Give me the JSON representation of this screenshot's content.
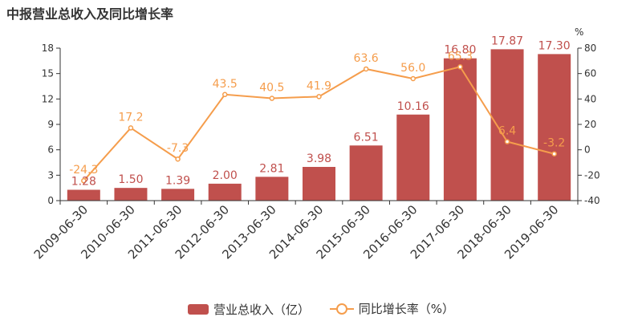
{
  "chart_data": {
    "type": "bar",
    "title": "中报营业总收入及同比增长率",
    "categories": [
      "2009-06-30",
      "2010-06-30",
      "2011-06-30",
      "2012-06-30",
      "2013-06-30",
      "2014-06-30",
      "2015-06-30",
      "2016-06-30",
      "2017-06-30",
      "2018-06-30",
      "2019-06-30"
    ],
    "series": [
      {
        "name": "营业总收入（亿）",
        "type": "bar",
        "axis": "left",
        "color": "#c0504d",
        "values": [
          1.28,
          1.5,
          1.39,
          2.0,
          2.81,
          3.98,
          6.51,
          10.16,
          16.8,
          17.87,
          17.3
        ],
        "labels": [
          "1.28",
          "1.50",
          "1.39",
          "2.00",
          "2.81",
          "3.98",
          "6.51",
          "10.16",
          "16.80",
          "17.87",
          "17.30"
        ]
      },
      {
        "name": "同比增长率（%）",
        "type": "line",
        "axis": "right",
        "color": "#f59d4c",
        "values": [
          -24.3,
          17.2,
          -7.3,
          43.5,
          40.5,
          41.9,
          63.6,
          56.0,
          65.3,
          6.4,
          -3.2
        ],
        "labels": [
          "-24.3",
          "17.2",
          "-7.3",
          "43.5",
          "40.5",
          "41.9",
          "63.6",
          "56.0",
          "65.3",
          "6.4",
          "-3.2"
        ]
      }
    ],
    "y_left": {
      "range": [
        0,
        18
      ],
      "ticks": [
        "0",
        "3",
        "6",
        "9",
        "12",
        "15",
        "18"
      ]
    },
    "y_right": {
      "range": [
        -40,
        80
      ],
      "ticks": [
        "-40",
        "-20",
        "0",
        "20",
        "40",
        "60",
        "80"
      ],
      "unit": "%"
    },
    "grid": false,
    "legend": "bottom-center"
  }
}
